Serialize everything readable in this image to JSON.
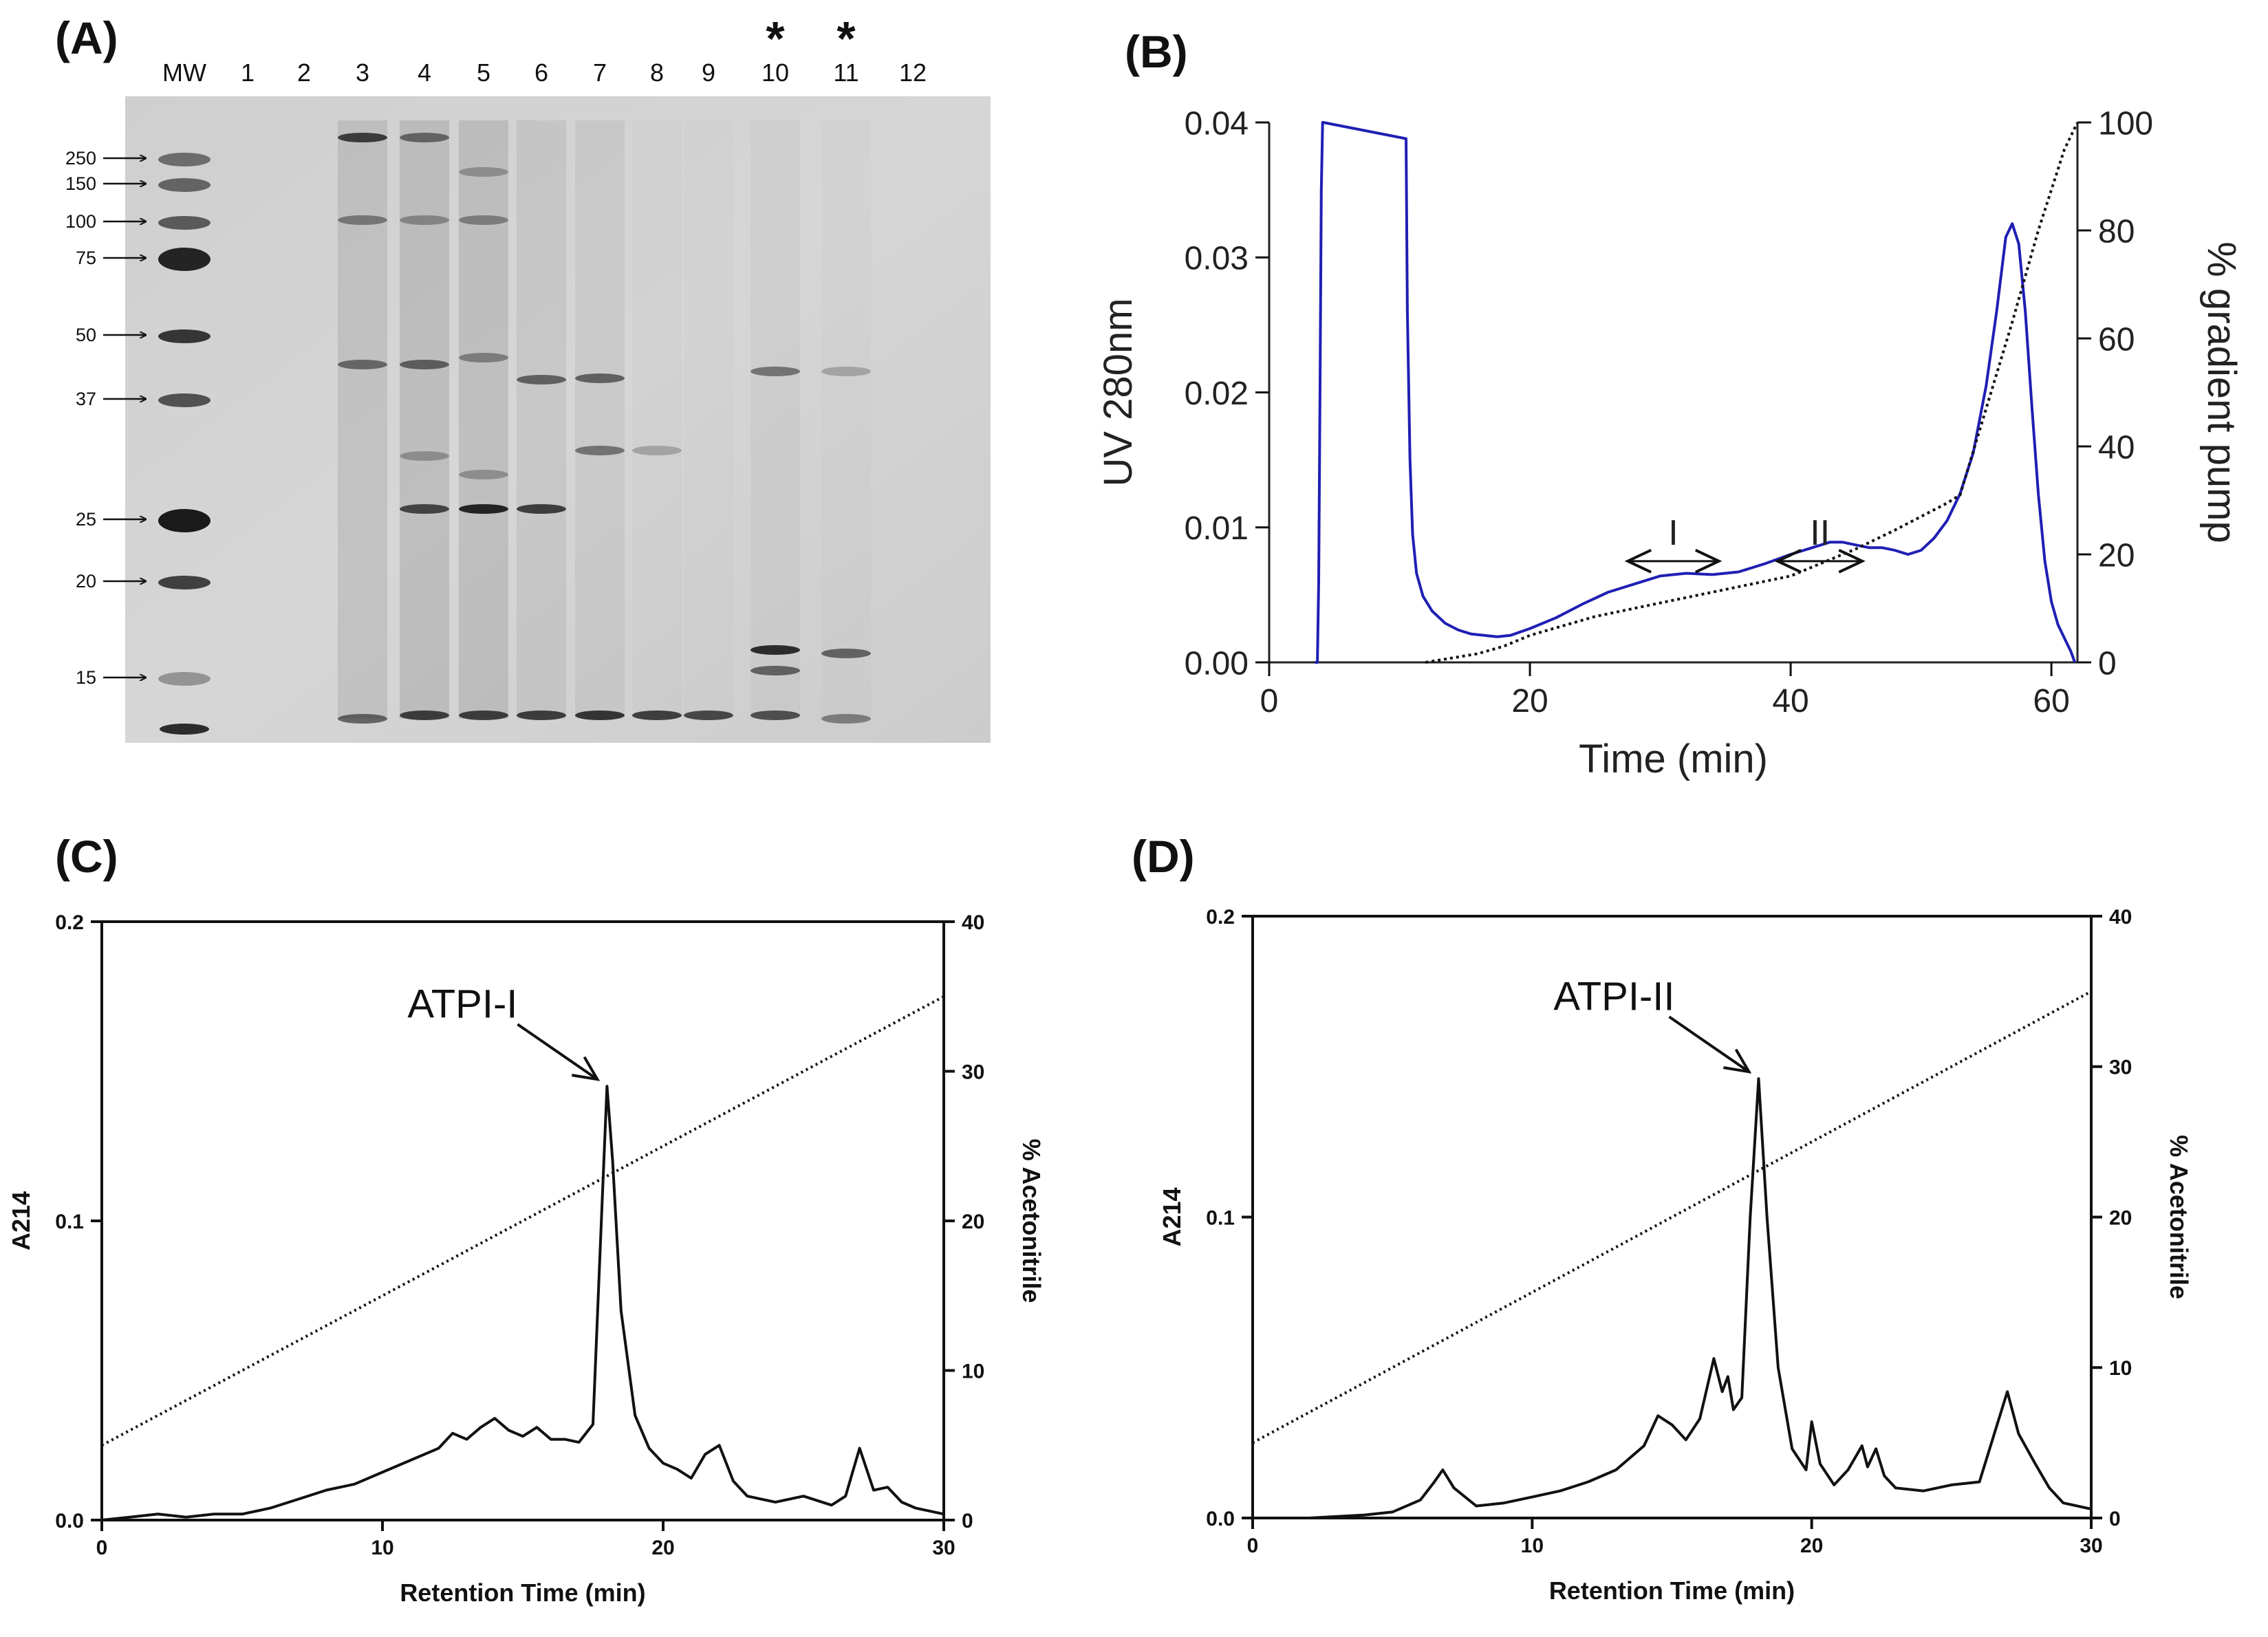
{
  "panels": {
    "a": "(A)",
    "b": "(B)",
    "c": "(C)",
    "d": "(D)"
  },
  "gel": {
    "lanes": [
      "MW",
      "1",
      "2",
      "3",
      "4",
      "5",
      "6",
      "7",
      "8",
      "9",
      "10",
      "11",
      "12"
    ],
    "star_marks": [
      "*",
      "*"
    ],
    "mw_markers": [
      {
        "label": "250",
        "kda": 250
      },
      {
        "label": "150",
        "kda": 150
      },
      {
        "label": "100",
        "kda": 100
      },
      {
        "label": "75",
        "kda": 75
      },
      {
        "label": "50",
        "kda": 50
      },
      {
        "label": "37",
        "kda": 37
      },
      {
        "label": "25",
        "kda": 25
      },
      {
        "label": "20",
        "kda": 20
      },
      {
        "label": "15",
        "kda": 15
      }
    ],
    "colors": {
      "background": "#d2d2d2",
      "band": "#1a1a1a"
    }
  },
  "chart_data": [
    {
      "panel": "B",
      "type": "line",
      "xlabel": "Time (min)",
      "ylabel_left": "UV 280nm",
      "ylabel_right": "% gradient pump",
      "xlim": [
        0,
        62
      ],
      "ylim_left": [
        0.0,
        0.04
      ],
      "ylim_right": [
        0,
        100
      ],
      "xticks": [
        0,
        20,
        40,
        60
      ],
      "yticks_left": [
        "0.00",
        "0.01",
        "0.02",
        "0.03",
        "0.04"
      ],
      "yticks_right": [
        "0",
        "20",
        "40",
        "60",
        "80",
        "100"
      ],
      "annotations": [
        {
          "label": "I",
          "from_min": 27.5,
          "to_min": 34.5
        },
        {
          "label": "II",
          "from_min": 39,
          "to_min": 45.5
        }
      ],
      "series": [
        {
          "name": "UV 280nm",
          "axis": "left",
          "color": "#1f1fb4",
          "style": "solid",
          "x": [
            3.5,
            3.7,
            3.8,
            3.9,
            4.0,
            4.1,
            4.15,
            10.5,
            10.6,
            10.8,
            11.0,
            11.3,
            11.8,
            12.5,
            13.5,
            14.5,
            15.5,
            16.5,
            17.5,
            18.5,
            20,
            22,
            24,
            26,
            28,
            30,
            32,
            34,
            36,
            38,
            40,
            42,
            43,
            44,
            45,
            46,
            47,
            48,
            49,
            50,
            51,
            52,
            53,
            54,
            55,
            55.8,
            56.5,
            57,
            57.5,
            58,
            58.5,
            59,
            59.5,
            60,
            60.5,
            61,
            61.5,
            61.8
          ],
          "y": [
            0.0,
            0.0,
            0.006,
            0.02,
            0.035,
            0.04,
            0.04,
            0.0388,
            0.026,
            0.015,
            0.0095,
            0.0066,
            0.0049,
            0.0038,
            0.0029,
            0.0024,
            0.0021,
            0.002,
            0.0019,
            0.002,
            0.0025,
            0.0033,
            0.0043,
            0.0052,
            0.0058,
            0.0064,
            0.0066,
            0.0065,
            0.0067,
            0.0073,
            0.008,
            0.0086,
            0.0089,
            0.0089,
            0.0087,
            0.0085,
            0.0085,
            0.0083,
            0.008,
            0.0083,
            0.0092,
            0.0105,
            0.0125,
            0.0155,
            0.0205,
            0.026,
            0.0315,
            0.0325,
            0.031,
            0.026,
            0.019,
            0.0125,
            0.0075,
            0.0045,
            0.0028,
            0.0018,
            0.0008,
            0.0
          ]
        },
        {
          "name": "% gradient pump",
          "axis": "right",
          "color": "#111111",
          "style": "dotted",
          "x": [
            12,
            14,
            16,
            18,
            20,
            25,
            30,
            35,
            40,
            45,
            48,
            50,
            52,
            53,
            55,
            57,
            59,
            61,
            62
          ],
          "y": [
            0,
            0.8,
            1.6,
            3,
            5,
            8.5,
            11,
            13.5,
            16,
            21,
            24.5,
            27,
            29.5,
            31,
            47,
            63,
            80,
            95,
            100
          ]
        }
      ]
    },
    {
      "panel": "C",
      "type": "line",
      "peak_label": "ATPI-I",
      "xlabel": "Retention Time (min)",
      "ylabel_left": "A214",
      "ylabel_right": "% Acetonitrile",
      "xlim": [
        0,
        30
      ],
      "ylim_left": [
        0.0,
        0.2
      ],
      "ylim_right": [
        0,
        40
      ],
      "xticks": [
        "0",
        "10",
        "20",
        "30"
      ],
      "yticks_left": [
        "0.0",
        "0.1",
        "0.2"
      ],
      "yticks_right": [
        "0",
        "10",
        "20",
        "30",
        "40"
      ],
      "peak_at": {
        "x": 18.0,
        "y": 0.145
      },
      "series": [
        {
          "name": "A214",
          "axis": "left",
          "color": "#111111",
          "style": "solid",
          "x": [
            0,
            1,
            2,
            3,
            4,
            5,
            6,
            7,
            8,
            9,
            10,
            11,
            12,
            12.5,
            13,
            13.5,
            14,
            14.5,
            15,
            15.5,
            16,
            16.5,
            17,
            17.5,
            17.8,
            18.0,
            18.2,
            18.5,
            19,
            19.5,
            20,
            20.5,
            21,
            21.5,
            22,
            22.5,
            23,
            24,
            25,
            26,
            26.5,
            27,
            27.5,
            28,
            28.5,
            29,
            30
          ],
          "y": [
            0.0,
            0.001,
            0.002,
            0.001,
            0.002,
            0.002,
            0.004,
            0.007,
            0.01,
            0.012,
            0.016,
            0.02,
            0.024,
            0.029,
            0.027,
            0.031,
            0.034,
            0.03,
            0.028,
            0.031,
            0.027,
            0.027,
            0.026,
            0.032,
            0.1,
            0.145,
            0.12,
            0.07,
            0.035,
            0.024,
            0.019,
            0.017,
            0.014,
            0.022,
            0.025,
            0.013,
            0.008,
            0.006,
            0.008,
            0.005,
            0.008,
            0.024,
            0.01,
            0.011,
            0.006,
            0.004,
            0.002
          ]
        },
        {
          "name": "% Acetonitrile",
          "axis": "right",
          "color": "#111111",
          "style": "dotted",
          "x": [
            0,
            30
          ],
          "y": [
            5,
            35
          ]
        }
      ]
    },
    {
      "panel": "D",
      "type": "line",
      "peak_label": "ATPI-II",
      "xlabel": "Retention Time (min)",
      "ylabel_left": "A214",
      "ylabel_right": "% Acetonitrile",
      "xlim": [
        0,
        30
      ],
      "ylim_left": [
        0.0,
        0.2
      ],
      "ylim_right": [
        0,
        40
      ],
      "xticks": [
        "0",
        "10",
        "20",
        "30"
      ],
      "yticks_left": [
        "0.0",
        "0.1",
        "0.2"
      ],
      "yticks_right": [
        "0",
        "10",
        "20",
        "30",
        "40"
      ],
      "peak_at": {
        "x": 18.1,
        "y": 0.146
      },
      "series": [
        {
          "name": "A214",
          "axis": "left",
          "color": "#111111",
          "style": "solid",
          "x": [
            0,
            2,
            4,
            5,
            6,
            6.5,
            6.8,
            7.2,
            8,
            9,
            10,
            11,
            12,
            13,
            14,
            14.5,
            15,
            15.5,
            16,
            16.5,
            16.8,
            17.0,
            17.2,
            17.5,
            17.8,
            18.1,
            18.4,
            18.8,
            19.3,
            19.8,
            20.0,
            20.3,
            20.8,
            21.3,
            21.8,
            22.0,
            22.3,
            22.6,
            23.0,
            24,
            25,
            26,
            26.6,
            27.0,
            27.4,
            28,
            28.5,
            29,
            30
          ],
          "y": [
            0.0,
            0.0,
            0.001,
            0.002,
            0.006,
            0.012,
            0.016,
            0.01,
            0.004,
            0.005,
            0.007,
            0.009,
            0.012,
            0.016,
            0.024,
            0.034,
            0.031,
            0.026,
            0.033,
            0.053,
            0.042,
            0.047,
            0.036,
            0.04,
            0.1,
            0.146,
            0.1,
            0.05,
            0.023,
            0.016,
            0.032,
            0.018,
            0.011,
            0.016,
            0.024,
            0.017,
            0.023,
            0.014,
            0.01,
            0.009,
            0.011,
            0.012,
            0.03,
            0.042,
            0.028,
            0.018,
            0.01,
            0.005,
            0.003
          ]
        },
        {
          "name": "% Acetonitrile",
          "axis": "right",
          "color": "#111111",
          "style": "dotted",
          "x": [
            0,
            30
          ],
          "y": [
            5,
            35
          ]
        }
      ]
    }
  ]
}
